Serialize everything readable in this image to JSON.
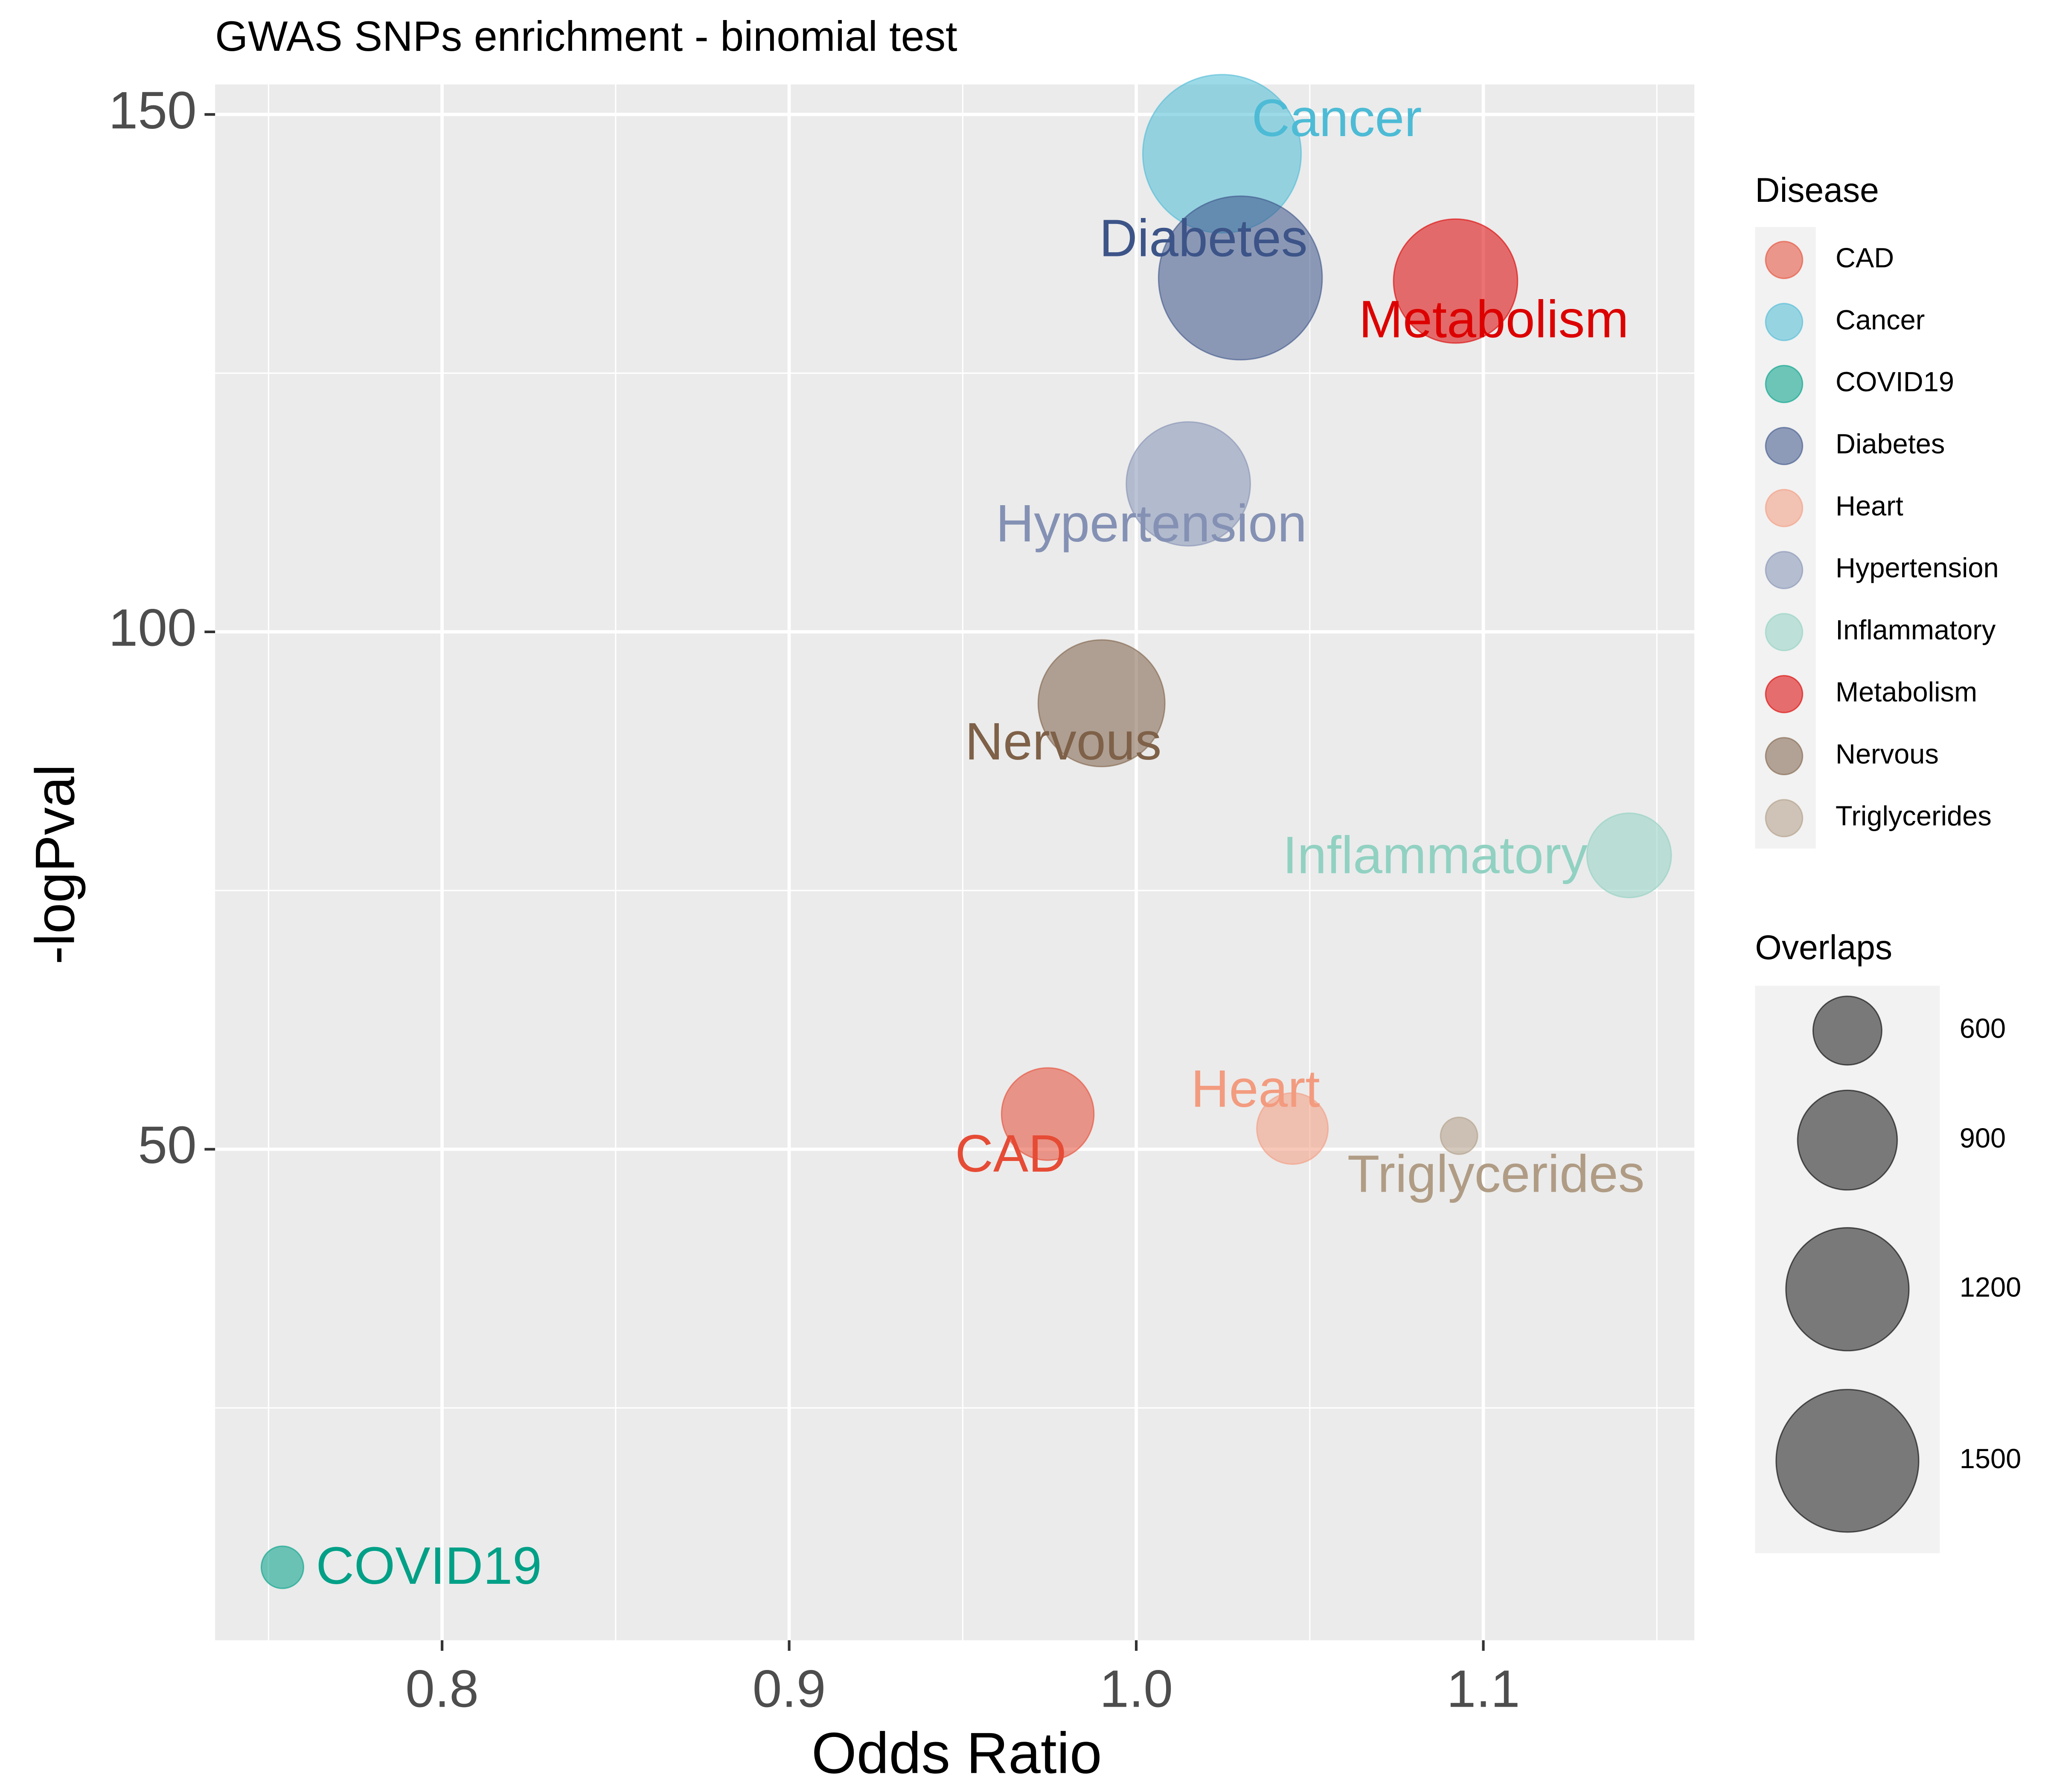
{
  "chart_data": {
    "type": "bubble",
    "title": "GWAS SNPs enrichment - binomial test",
    "x_label": "Odds Ratio",
    "y_label": "-logPval",
    "xlim": [
      0.7346,
      1.1608
    ],
    "ylim": [
      2.55,
      152.9
    ],
    "xticks": [
      0.8,
      0.9,
      {
        "value": 1,
        "label": "1.0"
      },
      1.1
    ],
    "yticks": [
      50,
      100,
      150
    ],
    "grid": true,
    "legend_title": "Disease",
    "size_legend": {
      "title": "Overlaps",
      "values": [
        600,
        900,
        1200,
        1500
      ]
    },
    "series": [
      {
        "name": "CAD",
        "color": "#E64B35",
        "x": [
          0.9745
        ],
        "y": [
          53.4
        ],
        "size": [
          820
        ]
      },
      {
        "name": "Cancer",
        "color": "#4DBBD5",
        "x": [
          1.0247
        ],
        "y": [
          146.2
        ],
        "size": [
          1774
        ]
      },
      {
        "name": "COVID19",
        "color": "#00A087",
        "x": [
          0.754
        ],
        "y": [
          9.6
        ],
        "size": [
          431
        ]
      },
      {
        "name": "Diabetes",
        "color": "#3C5488",
        "x": [
          1.03
        ],
        "y": [
          134.2
        ],
        "size": [
          1872
        ]
      },
      {
        "name": "Heart",
        "color": "#F39B7F",
        "x": [
          1.045
        ],
        "y": [
          52.0
        ],
        "size": [
          621
        ]
      },
      {
        "name": "Hypertension",
        "color": "#8491B4",
        "x": [
          1.015
        ],
        "y": [
          114.3
        ],
        "size": [
          1215
        ]
      },
      {
        "name": "Inflammatory",
        "color": "#91D1C2",
        "x": [
          1.142
        ],
        "y": [
          78.4
        ],
        "size": [
          739
        ]
      },
      {
        "name": "Metabolism",
        "color": "#DC0000",
        "x": [
          1.092
        ],
        "y": [
          133.9
        ],
        "size": [
          1215
        ]
      },
      {
        "name": "Nervous",
        "color": "#7E6148",
        "x": [
          0.99
        ],
        "y": [
          93.1
        ],
        "size": [
          1253
        ]
      },
      {
        "name": "Triglycerides",
        "color": "#B09C85",
        "x": [
          1.093
        ],
        "y": [
          51.3
        ],
        "size": [
          407
        ]
      }
    ]
  }
}
